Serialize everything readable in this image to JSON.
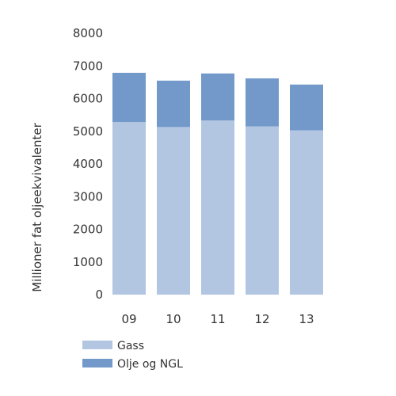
{
  "chart_data": {
    "type": "bar",
    "stacked": true,
    "categories": [
      "09",
      "10",
      "11",
      "12",
      "13"
    ],
    "series": [
      {
        "name": "Gass",
        "color": "#b3c6e1",
        "values": [
          5280,
          5130,
          5330,
          5150,
          5030
        ]
      },
      {
        "name": "Olje og NGL",
        "color": "#7299c9",
        "values": [
          1510,
          1420,
          1440,
          1470,
          1400
        ]
      }
    ],
    "ylabel": "Millioner fat oljeekvivalenter",
    "ylim": [
      0,
      8000
    ],
    "yticks": [
      0,
      1000,
      2000,
      3000,
      4000,
      5000,
      6000,
      7000,
      8000
    ],
    "legend_position": "bottom-left",
    "grid": false
  }
}
